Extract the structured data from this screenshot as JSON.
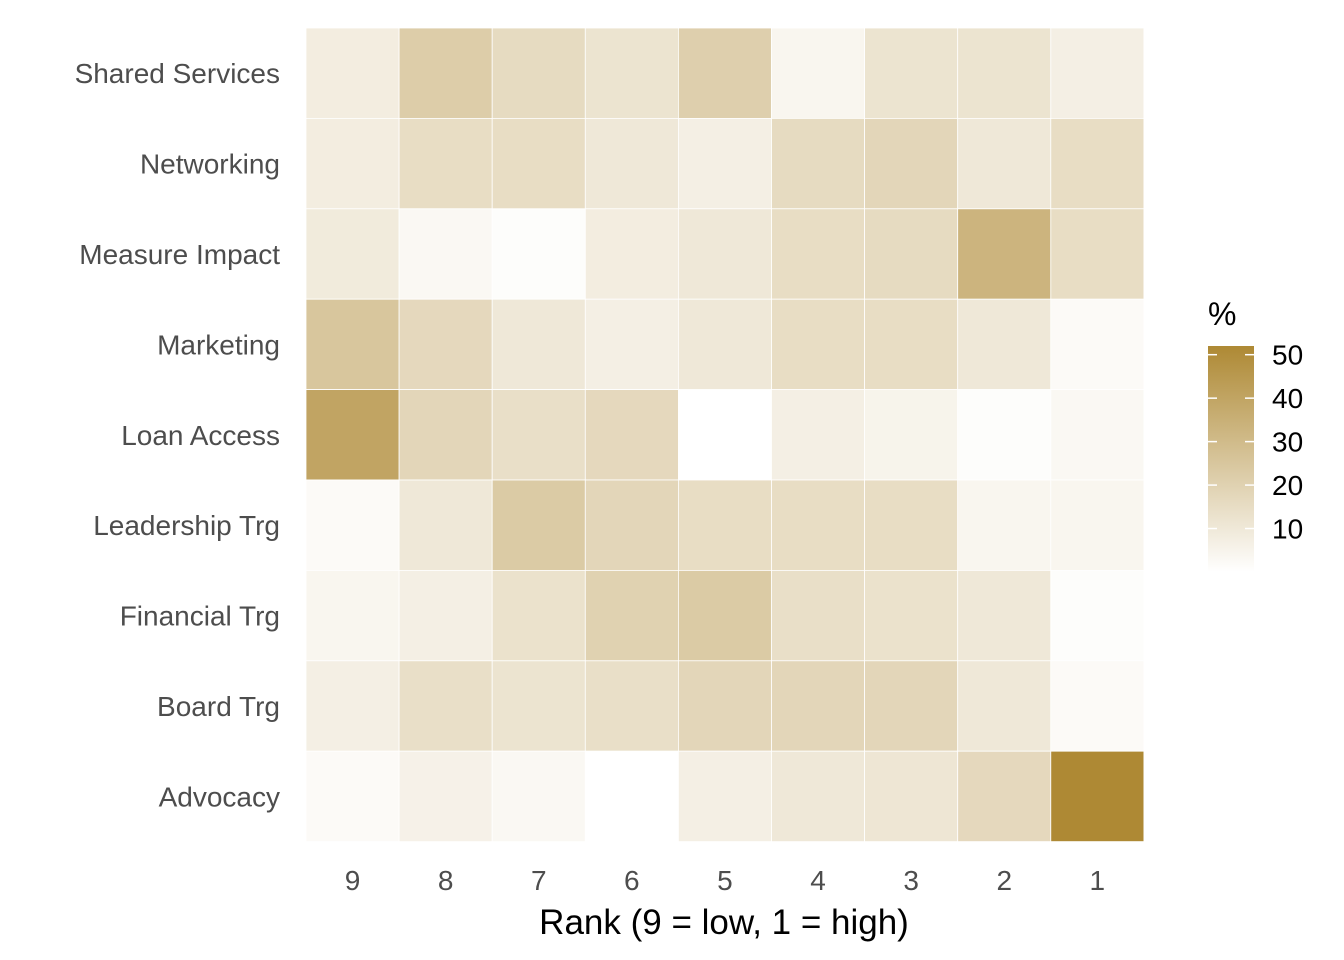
{
  "chart_data": {
    "type": "heatmap",
    "xlabel": "Rank (9 = low, 1 = high)",
    "ylabel": "",
    "x_categories": [
      "9",
      "8",
      "7",
      "6",
      "5",
      "4",
      "3",
      "2",
      "1"
    ],
    "y_categories": [
      "Shared Services",
      "Networking",
      "Measure Impact",
      "Marketing",
      "Loan Access",
      "Leadership Trg",
      "Financial Trg",
      "Board Trg",
      "Advocacy"
    ],
    "values": [
      [
        8,
        22,
        16,
        12,
        21,
        4,
        12,
        12,
        7
      ],
      [
        8,
        15,
        15,
        10,
        7,
        16,
        18,
        10,
        15
      ],
      [
        9,
        3,
        1,
        8,
        10,
        15,
        16,
        33,
        15
      ],
      [
        25,
        17,
        10,
        7,
        10,
        15,
        15,
        10,
        2
      ],
      [
        40,
        18,
        14,
        17,
        0,
        7,
        5,
        1,
        3
      ],
      [
        2,
        10,
        23,
        18,
        15,
        15,
        15,
        4,
        4
      ],
      [
        4,
        7,
        13,
        20,
        23,
        14,
        13,
        10,
        1
      ],
      [
        7,
        14,
        12,
        14,
        18,
        18,
        18,
        10,
        2
      ],
      [
        2,
        6,
        3,
        0,
        7,
        10,
        11,
        17,
        52
      ]
    ],
    "color_scale": {
      "title": "%",
      "min": 0,
      "max": 52,
      "low_color": "#ffffff",
      "high_color": "#ae8934",
      "ticks": [
        10,
        20,
        30,
        40,
        50
      ]
    },
    "legend_position": "right",
    "grid": false
  }
}
